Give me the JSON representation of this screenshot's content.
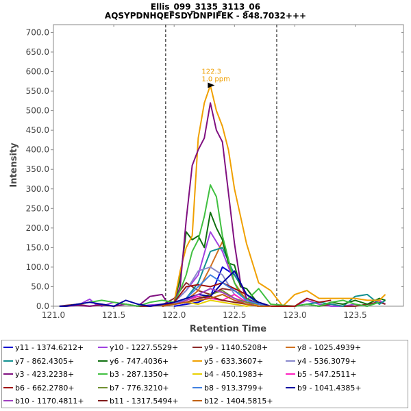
{
  "chart_data": {
    "type": "line",
    "title": "Ellis_099_3135_3113_06",
    "subtitle": "AQSYPDNHQEFSDYDNPIFEK - 848.7032+++",
    "xlabel": "Retention Time",
    "ylabel": "Intensity",
    "xlim": [
      121.0,
      123.9
    ],
    "ylim": [
      0,
      720
    ],
    "x_ticks": [
      "121.0",
      "121.5",
      "122.0",
      "122.5",
      "123.0",
      "123.5"
    ],
    "y_ticks": [
      "0.0",
      "50.0",
      "100.0",
      "150.0",
      "200.0",
      "250.0",
      "300.0",
      "350.0",
      "400.0",
      "450.0",
      "500.0",
      "550.0",
      "600.0",
      "650.0",
      "700.0"
    ],
    "grid": false,
    "vlines": [
      121.93,
      122.85
    ],
    "annotation": {
      "x": 122.33,
      "y": 565,
      "line1": "122.3",
      "line2": "1.0 ppm",
      "color": "#ef9f00"
    },
    "legend_position": "bottom",
    "series": [
      {
        "name": "y11 - 1374.6212+",
        "color": "#0000d0",
        "x": [
          122.0,
          122.1,
          122.2,
          122.3,
          122.4,
          122.5,
          122.6,
          122.7,
          122.8
        ],
        "y": [
          0,
          5,
          10,
          25,
          100,
          80,
          30,
          5,
          0
        ]
      },
      {
        "name": "y10 - 1227.5529+",
        "color": "#a040e0",
        "x": [
          121.05,
          121.1,
          121.2,
          121.3,
          121.35,
          121.4,
          121.5,
          121.6,
          121.7,
          121.8,
          121.9,
          122.0,
          122.1,
          122.2,
          122.3,
          122.4,
          122.5,
          122.6,
          122.7,
          122.8,
          123.0,
          123.1,
          123.2,
          123.3,
          123.4,
          123.5,
          123.6,
          123.7,
          123.75
        ],
        "y": [
          0,
          0,
          2,
          18,
          5,
          0,
          10,
          5,
          0,
          3,
          5,
          10,
          40,
          80,
          190,
          140,
          60,
          10,
          0,
          0,
          0,
          15,
          5,
          0,
          0,
          5,
          0,
          15,
          5
        ]
      },
      {
        "name": "y9 - 1140.5208+",
        "color": "#8b2a2a",
        "x": [
          121.05,
          121.1,
          121.2,
          121.3,
          121.4,
          121.5,
          121.6,
          121.7,
          121.8,
          121.9,
          122.0,
          122.1,
          122.2,
          122.3,
          122.4,
          122.5,
          122.6,
          122.7,
          122.8,
          123.0,
          123.1,
          123.2,
          123.3,
          123.4,
          123.5,
          123.6,
          123.7,
          123.75
        ],
        "y": [
          0,
          2,
          5,
          0,
          3,
          0,
          5,
          0,
          0,
          3,
          20,
          60,
          40,
          30,
          45,
          40,
          20,
          5,
          0,
          0,
          5,
          0,
          5,
          0,
          0,
          5,
          10,
          5
        ]
      },
      {
        "name": "y8 - 1025.4939+",
        "color": "#d07020",
        "x": [
          121.9,
          122.0,
          122.1,
          122.2,
          122.3,
          122.4,
          122.5,
          122.6,
          122.7,
          122.8
        ],
        "y": [
          0,
          5,
          15,
          40,
          100,
          165,
          60,
          15,
          5,
          0
        ]
      },
      {
        "name": "y7 - 862.4305+",
        "color": "#109090",
        "x": [
          121.9,
          122.0,
          122.1,
          122.2,
          122.3,
          122.4,
          122.5,
          122.6,
          122.7,
          122.8,
          123.0,
          123.1,
          123.2,
          123.3,
          123.4,
          123.5,
          123.6,
          123.7,
          123.75
        ],
        "y": [
          0,
          5,
          20,
          60,
          140,
          150,
          80,
          30,
          5,
          0,
          0,
          5,
          10,
          5,
          0,
          25,
          30,
          5,
          15
        ]
      },
      {
        "name": "y6 - 747.4036+",
        "color": "#107010",
        "x": [
          121.9,
          122.0,
          122.05,
          122.1,
          122.15,
          122.2,
          122.25,
          122.3,
          122.35,
          122.4,
          122.45,
          122.5,
          122.55,
          122.6,
          122.7,
          122.8,
          123.0,
          123.1,
          123.2,
          123.3,
          123.4,
          123.5,
          123.6,
          123.7,
          123.75
        ],
        "y": [
          0,
          10,
          70,
          190,
          170,
          180,
          150,
          240,
          200,
          170,
          110,
          105,
          50,
          45,
          5,
          0,
          0,
          5,
          0,
          10,
          5,
          15,
          5,
          20,
          15
        ]
      },
      {
        "name": "y5 - 633.3607+",
        "color": "#f0a000",
        "x": [
          121.9,
          122.0,
          122.05,
          122.1,
          122.15,
          122.2,
          122.25,
          122.3,
          122.35,
          122.4,
          122.45,
          122.5,
          122.55,
          122.6,
          122.7,
          122.8,
          122.9,
          123.0,
          123.1,
          123.2,
          123.3,
          123.4,
          123.5,
          123.6,
          123.7,
          123.75
        ],
        "y": [
          0,
          10,
          90,
          150,
          180,
          430,
          520,
          565,
          500,
          460,
          400,
          300,
          230,
          160,
          60,
          40,
          0,
          30,
          40,
          20,
          20,
          20,
          20,
          15,
          15,
          30
        ]
      },
      {
        "name": "y4 - 536.3079+",
        "color": "#8888cc",
        "x": [
          121.9,
          122.0,
          122.1,
          122.2,
          122.3,
          122.4,
          122.5,
          122.6,
          122.7,
          122.8
        ],
        "y": [
          0,
          10,
          40,
          90,
          100,
          80,
          30,
          10,
          5,
          0
        ]
      },
      {
        "name": "y3 - 423.2238+",
        "color": "#801080",
        "x": [
          121.05,
          121.1,
          121.2,
          121.3,
          121.4,
          121.5,
          121.6,
          121.7,
          121.8,
          121.9,
          121.95,
          122.0,
          122.05,
          122.1,
          122.15,
          122.2,
          122.25,
          122.3,
          122.35,
          122.4,
          122.45,
          122.5,
          122.55,
          122.6,
          122.7,
          122.8
        ],
        "y": [
          0,
          0,
          2,
          0,
          5,
          0,
          5,
          0,
          25,
          30,
          5,
          10,
          50,
          220,
          360,
          400,
          430,
          520,
          450,
          420,
          290,
          160,
          60,
          20,
          5,
          0
        ]
      },
      {
        "name": "b3 - 287.1350+",
        "color": "#40c040",
        "x": [
          121.05,
          121.1,
          121.2,
          121.3,
          121.4,
          121.5,
          121.6,
          121.7,
          121.8,
          121.9,
          122.0,
          122.05,
          122.1,
          122.15,
          122.2,
          122.25,
          122.3,
          122.35,
          122.4,
          122.45,
          122.5,
          122.55,
          122.6,
          122.7,
          122.8,
          123.0,
          123.1,
          123.2,
          123.3,
          123.4,
          123.5,
          123.6,
          123.7
        ],
        "y": [
          0,
          0,
          5,
          10,
          15,
          10,
          5,
          0,
          10,
          15,
          10,
          40,
          80,
          140,
          170,
          230,
          310,
          280,
          180,
          120,
          60,
          30,
          15,
          45,
          5,
          0,
          5,
          0,
          10,
          15,
          5,
          0,
          10
        ]
      },
      {
        "name": "b4 - 450.1983+",
        "color": "#e8d000",
        "x": [
          121.9,
          122.0,
          122.1,
          122.2,
          122.3,
          122.4,
          122.5,
          122.6,
          122.7,
          122.8
        ],
        "y": [
          0,
          5,
          10,
          5,
          15,
          10,
          5,
          0,
          5,
          0
        ]
      },
      {
        "name": "b5 - 547.2511+",
        "color": "#ff20c0",
        "x": [
          121.9,
          122.0,
          122.1,
          122.2,
          122.3,
          122.4,
          122.5,
          122.6,
          122.7,
          122.8
        ],
        "y": [
          0,
          5,
          15,
          25,
          20,
          15,
          30,
          10,
          5,
          0
        ]
      },
      {
        "name": "b6 - 662.2780+",
        "color": "#a01010",
        "x": [
          121.9,
          122.0,
          122.1,
          122.2,
          122.3,
          122.4,
          122.5,
          122.6,
          122.7,
          122.8,
          123.0,
          123.1,
          123.2,
          123.3
        ],
        "y": [
          0,
          10,
          50,
          55,
          50,
          60,
          45,
          30,
          10,
          0,
          0,
          20,
          10,
          15
        ]
      },
      {
        "name": "b7 - 776.3210+",
        "color": "#709030",
        "x": [
          121.9,
          122.0,
          122.1,
          122.2,
          122.3,
          122.4,
          122.5,
          122.6,
          122.7,
          122.8
        ],
        "y": [
          0,
          5,
          10,
          20,
          30,
          40,
          20,
          10,
          5,
          0
        ]
      },
      {
        "name": "b8 - 913.3799+",
        "color": "#4080e0",
        "x": [
          121.9,
          122.0,
          122.1,
          122.2,
          122.3,
          122.4,
          122.5,
          122.6,
          122.7,
          122.8
        ],
        "y": [
          0,
          5,
          20,
          50,
          80,
          60,
          40,
          15,
          5,
          0
        ]
      },
      {
        "name": "b9 - 1041.4385+",
        "color": "#0000a0",
        "x": [
          121.05,
          121.1,
          121.2,
          121.3,
          121.4,
          121.5,
          121.6,
          121.7,
          121.8,
          121.9,
          122.0,
          122.1,
          122.2,
          122.3,
          122.4,
          122.5,
          122.6,
          122.7,
          122.8
        ],
        "y": [
          0,
          0,
          5,
          10,
          5,
          0,
          15,
          5,
          0,
          5,
          10,
          20,
          30,
          25,
          60,
          90,
          30,
          10,
          0
        ]
      },
      {
        "name": "b10 - 1170.4811+",
        "color": "#a040c0",
        "x": [
          121.9,
          122.0,
          122.1,
          122.2,
          122.3,
          122.4,
          122.5,
          122.6,
          122.7,
          122.8
        ],
        "y": [
          0,
          5,
          15,
          30,
          45,
          35,
          20,
          5,
          0,
          0
        ]
      },
      {
        "name": "b11 - 1317.5494+",
        "color": "#801818",
        "x": [
          121.9,
          122.0,
          122.1,
          122.2,
          122.3,
          122.4,
          122.5,
          122.6,
          122.7,
          122.8
        ],
        "y": [
          0,
          5,
          10,
          20,
          25,
          15,
          10,
          5,
          0,
          0
        ]
      },
      {
        "name": "b12 - 1404.5815+",
        "color": "#c06010",
        "x": [
          121.9,
          122.0,
          122.1,
          122.2,
          122.3,
          122.4,
          122.5,
          122.6,
          122.7,
          122.8
        ],
        "y": [
          0,
          5,
          10,
          15,
          20,
          30,
          15,
          5,
          0,
          0
        ]
      }
    ]
  }
}
